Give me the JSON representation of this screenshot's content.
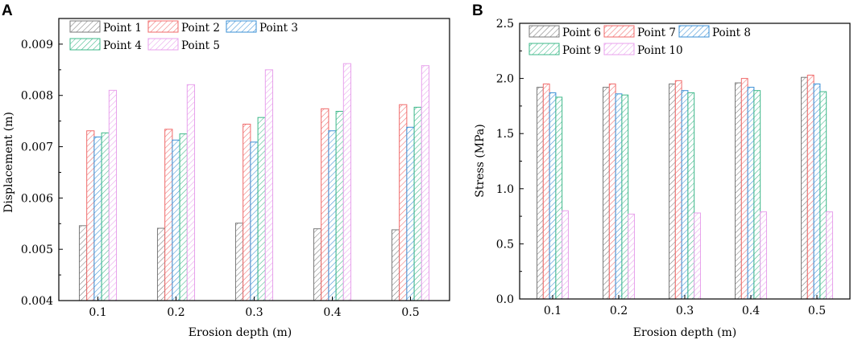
{
  "chart_data": [
    {
      "panel": "A",
      "type": "bar",
      "title": "",
      "xlabel": "Erosion depth (m)",
      "ylabel": "Displacement (m)",
      "categories": [
        "0.1",
        "0.2",
        "0.3",
        "0.4",
        "0.5"
      ],
      "ylim": [
        0.004,
        0.0095
      ],
      "yticks": [
        "0.004",
        "0.005",
        "0.006",
        "0.007",
        "0.008",
        "0.009"
      ],
      "series": [
        {
          "name": "Point 1",
          "color": "#7a7a7a",
          "values": [
            0.00546,
            0.00541,
            0.00551,
            0.0054,
            0.00538
          ]
        },
        {
          "name": "Point 2",
          "color": "#f06a6a",
          "values": [
            0.00731,
            0.00734,
            0.00744,
            0.00774,
            0.00782
          ]
        },
        {
          "name": "Point 3",
          "color": "#3a8fd6",
          "values": [
            0.00719,
            0.00713,
            0.00709,
            0.00731,
            0.00738
          ]
        },
        {
          "name": "Point 4",
          "color": "#3db889",
          "values": [
            0.00727,
            0.00725,
            0.00757,
            0.00769,
            0.00777
          ]
        },
        {
          "name": "Point 5",
          "color": "#e8a2ec",
          "values": [
            0.0081,
            0.00821,
            0.0085,
            0.00862,
            0.00858
          ]
        }
      ]
    },
    {
      "panel": "B",
      "type": "bar",
      "title": "",
      "xlabel": "Erosion depth (m)",
      "ylabel": "Stress (MPa)",
      "categories": [
        "0.1",
        "0.2",
        "0.3",
        "0.4",
        "0.5"
      ],
      "ylim": [
        0.0,
        2.5
      ],
      "yticks": [
        "0.0",
        "0.5",
        "1.0",
        "1.5",
        "2.0",
        "2.5"
      ],
      "series": [
        {
          "name": "Point 6",
          "color": "#7a7a7a",
          "values": [
            1.92,
            1.92,
            1.95,
            1.96,
            2.01
          ]
        },
        {
          "name": "Point 7",
          "color": "#f06a6a",
          "values": [
            1.95,
            1.95,
            1.98,
            2.0,
            2.03
          ]
        },
        {
          "name": "Point 8",
          "color": "#3a8fd6",
          "values": [
            1.87,
            1.86,
            1.89,
            1.92,
            1.95
          ]
        },
        {
          "name": "Point 9",
          "color": "#3db889",
          "values": [
            1.83,
            1.85,
            1.87,
            1.89,
            1.88
          ]
        },
        {
          "name": "Point 10",
          "color": "#e8a2ec",
          "values": [
            0.8,
            0.77,
            0.78,
            0.79,
            0.79
          ]
        }
      ]
    }
  ]
}
